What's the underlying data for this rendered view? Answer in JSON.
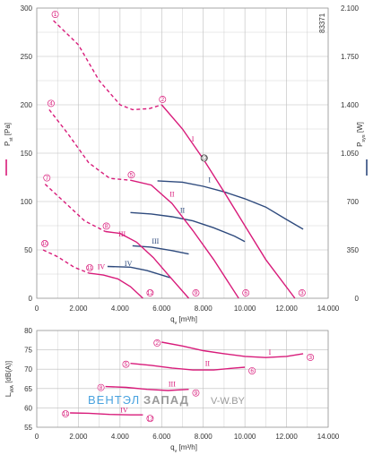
{
  "colors": {
    "pressure": "#d81b7a",
    "power": "#2e4a7d",
    "grid": "#bdbdbd",
    "watermark_blue": "#4aa3df",
    "watermark_gray": "#9a9a9a"
  },
  "watermark": {
    "part1": "ВЕНТЭЛ",
    "part2": "ЗАПАД",
    "site": "V-W.BY"
  },
  "chart_data": [
    {
      "type": "line",
      "id_label": "83371",
      "xlabel": "q_v [m³/h]",
      "ylabel_left": "P_st [Pa]",
      "ylabel_right": "P_sys [W]",
      "xlim": [
        0,
        14000
      ],
      "ylim": [
        0,
        300
      ],
      "ylim_right": [
        0,
        2100
      ],
      "x_ticks": [
        0,
        2000,
        4000,
        6000,
        8000,
        10000,
        12000,
        14000
      ],
      "x_tick_labels": [
        "0",
        "2.000",
        "4.000",
        "6.000",
        "8.000",
        "10.000",
        "12.000",
        "14.000"
      ],
      "y_ticks": [
        0,
        50,
        100,
        150,
        200,
        250,
        300
      ],
      "y_tick_labels": [
        "0",
        "50",
        "100",
        "150",
        "200",
        "250",
        "300"
      ],
      "y_right_ticks": [
        0,
        350,
        700,
        1050,
        1400,
        1750,
        2100
      ],
      "y_right_tick_labels": [
        "0",
        "350",
        "700",
        "1.050",
        "1.400",
        "1.750",
        "2.100"
      ],
      "grid": true,
      "pressure_curves": [
        {
          "name": "I",
          "dashed": [
            [
              800,
              287
            ],
            [
              2000,
              262
            ],
            [
              3000,
              225
            ],
            [
              4000,
              200
            ],
            [
              4600,
              195
            ],
            [
              5400,
              196
            ],
            [
              6000,
              200
            ]
          ],
          "solid": [
            [
              6000,
              200
            ],
            [
              7000,
              175
            ],
            [
              8000,
              144
            ],
            [
              9000,
              110
            ],
            [
              10000,
              75
            ],
            [
              11000,
              40
            ],
            [
              12400,
              0
            ]
          ],
          "roman_at": [
            7500,
            162
          ]
        },
        {
          "name": "II",
          "dashed": [
            [
              600,
              195
            ],
            [
              1500,
              170
            ],
            [
              2500,
              140
            ],
            [
              3500,
              124
            ],
            [
              4500,
              122
            ]
          ],
          "solid": [
            [
              4500,
              122
            ],
            [
              5500,
              117
            ],
            [
              6500,
              98
            ],
            [
              7500,
              70
            ],
            [
              8500,
              40
            ],
            [
              9700,
              0
            ]
          ],
          "roman_at": [
            6500,
            105
          ]
        },
        {
          "name": "III",
          "dashed": [
            [
              400,
              118
            ],
            [
              1300,
              100
            ],
            [
              2300,
              80
            ],
            [
              3300,
              69
            ]
          ],
          "solid": [
            [
              3300,
              69
            ],
            [
              4000,
              67
            ],
            [
              4800,
              58
            ],
            [
              5600,
              42
            ],
            [
              6400,
              22
            ],
            [
              7300,
              0
            ]
          ],
          "roman_at": [
            4100,
            64
          ]
        },
        {
          "name": "IV",
          "dashed": [
            [
              300,
              50
            ],
            [
              1000,
              43
            ],
            [
              1800,
              32
            ],
            [
              2500,
              26
            ]
          ],
          "solid": [
            [
              2500,
              26
            ],
            [
              3200,
              24
            ],
            [
              3900,
              20
            ],
            [
              4500,
              12
            ],
            [
              5100,
              0
            ]
          ],
          "roman_at": [
            3100,
            30
          ]
        }
      ],
      "power_curves": [
        {
          "name": "I",
          "points": [
            [
              5800,
              850
            ],
            [
              7000,
              840
            ],
            [
              8000,
              810
            ],
            [
              9000,
              770
            ],
            [
              10000,
              720
            ],
            [
              11000,
              660
            ],
            [
              12000,
              570
            ],
            [
              12800,
              500
            ]
          ],
          "roman_at": [
            8300,
            820
          ]
        },
        {
          "name": "II",
          "points": [
            [
              4500,
              620
            ],
            [
              5500,
              610
            ],
            [
              6500,
              590
            ],
            [
              7500,
              560
            ],
            [
              8500,
              510
            ],
            [
              9500,
              450
            ],
            [
              10000,
              410
            ]
          ],
          "roman_at": [
            7000,
            600
          ]
        },
        {
          "name": "III",
          "points": [
            [
              4600,
              380
            ],
            [
              5500,
              370
            ],
            [
              6500,
              345
            ],
            [
              7300,
              320
            ]
          ],
          "roman_at": [
            5700,
            375
          ]
        },
        {
          "name": "IV",
          "points": [
            [
              3400,
              230
            ],
            [
              4500,
              225
            ],
            [
              5300,
              200
            ],
            [
              6400,
              150
            ]
          ],
          "roman_at": [
            4400,
            215
          ]
        }
      ],
      "markers_dashed_start": [
        {
          "label": "1",
          "q": 800,
          "p": 287
        },
        {
          "label": "4",
          "q": 600,
          "p": 195
        },
        {
          "label": "7",
          "q": 400,
          "p": 118
        },
        {
          "label": "10",
          "q": 300,
          "p": 50
        }
      ],
      "markers_knee": [
        {
          "label": "2",
          "q": 6000,
          "p": 200
        },
        {
          "label": "5",
          "q": 4500,
          "p": 122
        },
        {
          "label": "8",
          "q": 3300,
          "p": 69
        },
        {
          "label": "11",
          "q": 2500,
          "p": 26
        }
      ],
      "markers_end": [
        {
          "label": "3",
          "q": 12400,
          "p": 0
        },
        {
          "label": "6",
          "q": 9700,
          "p": 0
        },
        {
          "label": "9",
          "q": 7300,
          "p": 0
        },
        {
          "label": "12",
          "q": 5100,
          "p": 0
        }
      ],
      "marker_mid": {
        "label": "13",
        "q": 8000,
        "p": 144
      }
    },
    {
      "type": "line",
      "xlabel": "q_v [m³/h]",
      "ylabel": "L_WA [dB(A)]",
      "xlim": [
        0,
        14000
      ],
      "ylim": [
        55,
        80
      ],
      "x_ticks": [
        0,
        2000,
        4000,
        6000,
        8000,
        10000,
        12000,
        14000
      ],
      "x_tick_labels": [
        "0",
        "2.000",
        "4.000",
        "6.000",
        "8.000",
        "10.000",
        "12.000",
        "14.000"
      ],
      "y_ticks": [
        55,
        60,
        65,
        70,
        75,
        80
      ],
      "y_tick_labels": [
        "55",
        "60",
        "65",
        "70",
        "75",
        "80"
      ],
      "grid": true,
      "series": [
        {
          "name": "I",
          "points": [
            [
              6000,
              77
            ],
            [
              7000,
              76
            ],
            [
              8000,
              74.8
            ],
            [
              9000,
              74
            ],
            [
              10000,
              73.3
            ],
            [
              11000,
              73
            ],
            [
              12000,
              73.3
            ],
            [
              12800,
              74
            ]
          ],
          "start_label": "2",
          "end_label": "3",
          "roman_at": [
            11200,
            73.8
          ]
        },
        {
          "name": "II",
          "points": [
            [
              4500,
              71.5
            ],
            [
              5500,
              71
            ],
            [
              6500,
              70.3
            ],
            [
              7500,
              69.8
            ],
            [
              8500,
              69.8
            ],
            [
              9500,
              70.3
            ],
            [
              10000,
              70.5
            ]
          ],
          "start_label": "5",
          "end_label": "6",
          "roman_at": [
            8200,
            70.8
          ]
        },
        {
          "name": "III",
          "points": [
            [
              3300,
              65.5
            ],
            [
              4300,
              65.3
            ],
            [
              5300,
              64.8
            ],
            [
              6300,
              64.5
            ],
            [
              7300,
              64.8
            ]
          ],
          "start_label": "8",
          "end_label": "9",
          "roman_at": [
            6500,
            65.5
          ]
        },
        {
          "name": "IV",
          "points": [
            [
              1600,
              58.7
            ],
            [
              2500,
              58.6
            ],
            [
              3500,
              58.3
            ],
            [
              4500,
              58.2
            ],
            [
              5100,
              58.2
            ]
          ],
          "start_label": "11",
          "end_label": "12",
          "roman_at": [
            4200,
            58.8
          ]
        }
      ]
    }
  ]
}
